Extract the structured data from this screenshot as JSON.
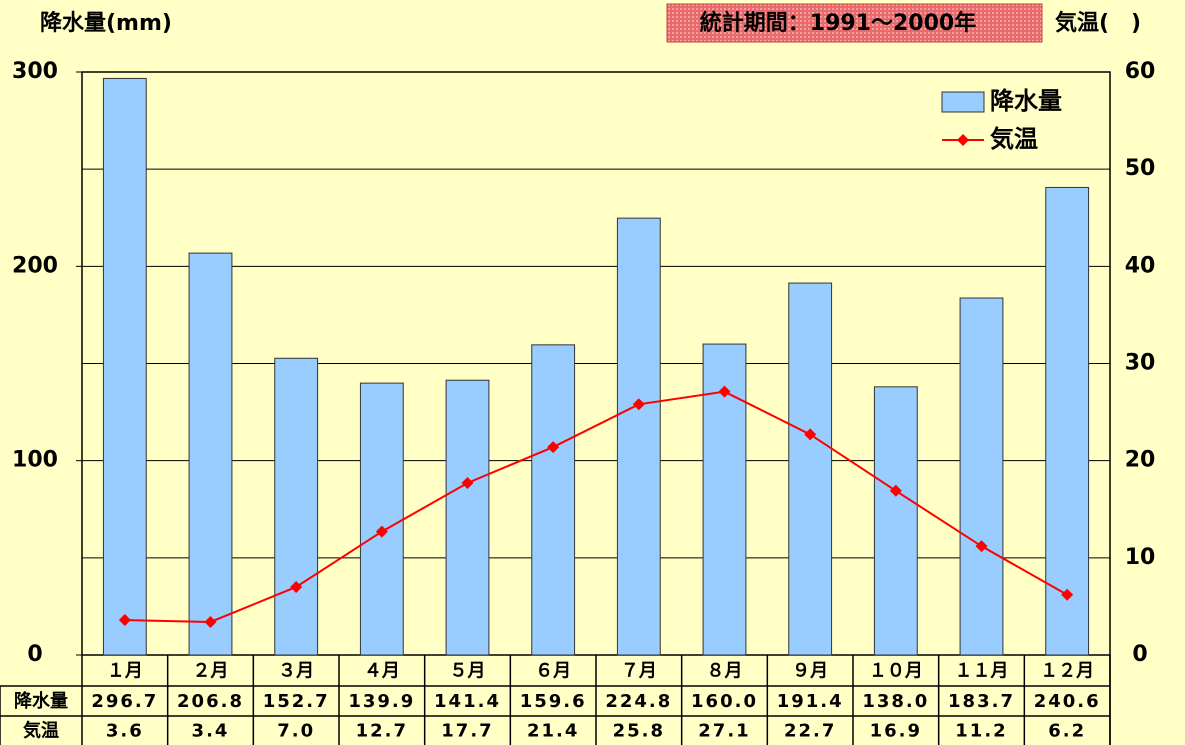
{
  "chart_data": {
    "type": "bar",
    "title": "降水量(mm)",
    "subtitle": "統計期間：1991～2000年",
    "y2_label": "気温(　)",
    "categories": [
      "１月",
      "２月",
      "３月",
      "４月",
      "５月",
      "６月",
      "７月",
      "８月",
      "９月",
      "１０月",
      "１１月",
      "１２月"
    ],
    "series": [
      {
        "name": "降水量",
        "type": "bar",
        "color": "#99ccff",
        "values": [
          296.7,
          206.8,
          152.7,
          139.9,
          141.4,
          159.6,
          224.8,
          160.0,
          191.4,
          138.0,
          183.7,
          240.6
        ],
        "value_labels": [
          "296.7",
          "206.8",
          "152.7",
          "139.9",
          "141.4",
          "159.6",
          "224.8",
          "160.0",
          "191.4",
          "138.0",
          "183.7",
          "240.6"
        ]
      },
      {
        "name": "気温",
        "type": "line",
        "axis": "y2",
        "color": "#ff0000",
        "values": [
          3.6,
          3.4,
          7.0,
          12.7,
          17.7,
          21.4,
          25.8,
          27.1,
          22.7,
          16.9,
          11.2,
          6.2
        ],
        "value_labels": [
          "3.6",
          "3.4",
          "7.0",
          "12.7",
          "17.7",
          "21.4",
          "25.8",
          "27.1",
          "22.7",
          "16.9",
          "11.2",
          "6.2"
        ]
      }
    ],
    "ylim": [
      0,
      300
    ],
    "yticks": [
      0,
      100,
      200,
      300
    ],
    "y2lim": [
      0,
      60
    ],
    "y2ticks": [
      0,
      10,
      20,
      30,
      40,
      50,
      60
    ],
    "grid": "y2",
    "legend": "upper right"
  }
}
